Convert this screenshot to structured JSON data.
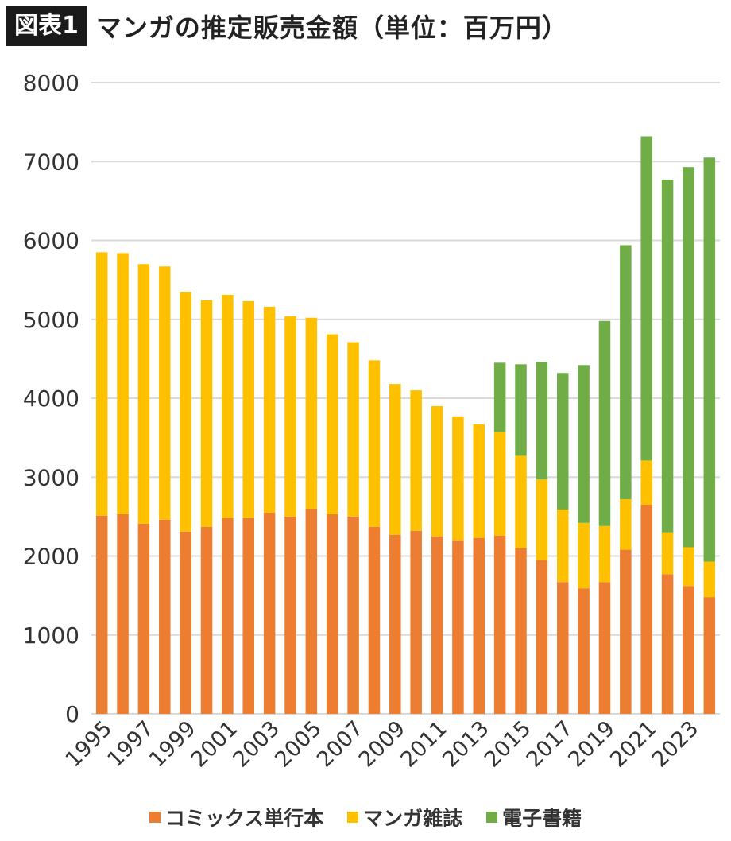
{
  "header": {
    "badge": "図表1",
    "title": "マンガの推定販売金額（単位：百万円）"
  },
  "chart_data": {
    "type": "bar",
    "stacked": true,
    "title": "マンガの推定販売金額（単位：百万円）",
    "xlabel": "",
    "ylabel": "",
    "ylim": [
      0,
      8000
    ],
    "yticks": [
      "0",
      "1000",
      "2000",
      "3000",
      "4000",
      "5000",
      "6000",
      "7000",
      "8000"
    ],
    "ytick_values": [
      0,
      1000,
      2000,
      3000,
      4000,
      5000,
      6000,
      7000,
      8000
    ],
    "grid": true,
    "legend_position": "bottom",
    "categories": [
      "1995",
      "1996",
      "1997",
      "1998",
      "1999",
      "2000",
      "2001",
      "2002",
      "2003",
      "2004",
      "2005",
      "2006",
      "2007",
      "2008",
      "2009",
      "2010",
      "2011",
      "2012",
      "2013",
      "2014",
      "2015",
      "2016",
      "2017",
      "2018",
      "2019",
      "2020",
      "2021",
      "2022",
      "2023",
      "2024"
    ],
    "xtick_labels": [
      "1995",
      "1997",
      "1999",
      "2001",
      "2003",
      "2005",
      "2007",
      "2009",
      "2011",
      "2013",
      "2015",
      "2017",
      "2019",
      "2021",
      "2023"
    ],
    "series": [
      {
        "name": "コミックス単行本",
        "color": "#ED7D31",
        "values": [
          2510,
          2530,
          2410,
          2460,
          2310,
          2370,
          2480,
          2480,
          2550,
          2500,
          2600,
          2530,
          2500,
          2370,
          2270,
          2320,
          2250,
          2200,
          2230,
          2260,
          2100,
          1950,
          1670,
          1590,
          1670,
          2080,
          2650,
          1770,
          1620,
          1480
        ]
      },
      {
        "name": "マンガ雑誌",
        "color": "#FFC000",
        "values": [
          3340,
          3310,
          3290,
          3210,
          3040,
          2870,
          2830,
          2750,
          2610,
          2540,
          2420,
          2280,
          2210,
          2110,
          1910,
          1780,
          1650,
          1570,
          1440,
          1310,
          1170,
          1020,
          920,
          830,
          710,
          640,
          560,
          530,
          490,
          450
        ]
      },
      {
        "name": "電子書籍",
        "color": "#70AD47",
        "values": [
          0,
          0,
          0,
          0,
          0,
          0,
          0,
          0,
          0,
          0,
          0,
          0,
          0,
          0,
          0,
          0,
          0,
          0,
          0,
          880,
          1160,
          1490,
          1730,
          2000,
          2600,
          3220,
          4110,
          4470,
          4820,
          5120
        ]
      }
    ]
  }
}
